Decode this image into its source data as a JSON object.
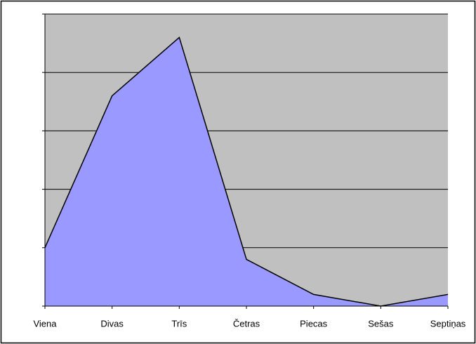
{
  "chart_data": {
    "type": "area",
    "categories": [
      "Viena",
      "Divas",
      "Trīs",
      "Četras",
      "Piecas",
      "Sešas",
      "Septiņas"
    ],
    "values": [
      1,
      3.6,
      4.6,
      0.8,
      0.2,
      0,
      0.2
    ],
    "color": "#9999ff",
    "ylim": [
      0,
      5
    ],
    "yticks": [
      0,
      1,
      2,
      3,
      4,
      5
    ],
    "grid": true
  }
}
